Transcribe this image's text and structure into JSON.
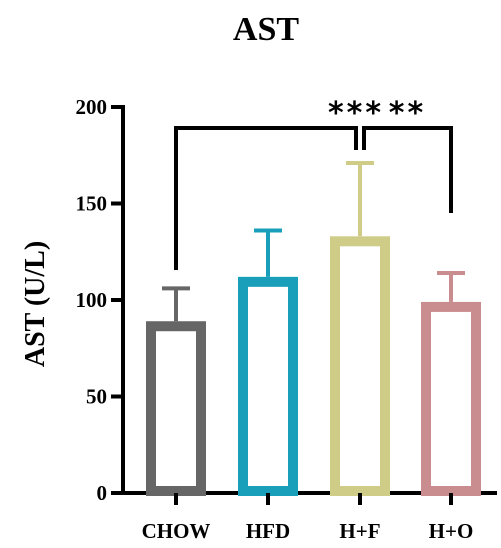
{
  "chart_data": {
    "type": "bar",
    "title": "AST",
    "xlabel": "",
    "ylabel": "AST (U/L)",
    "ylim": [
      0,
      200
    ],
    "yticks": [
      "0",
      "50",
      "100",
      "150",
      "200"
    ],
    "categories": [
      "CHOW",
      "HFD",
      "H+F",
      "H+O"
    ],
    "values": [
      89,
      112,
      133,
      99
    ],
    "errors": [
      17,
      24,
      38,
      15
    ],
    "colors": [
      "#666666",
      "#1a9fba",
      "#cfcc88",
      "#c98d8f"
    ],
    "grid": false,
    "legend": "none",
    "significance": [
      {
        "from": "CHOW",
        "to": "H+F",
        "label": "***"
      },
      {
        "from": "H+F",
        "to": "H+O",
        "label": "**"
      }
    ]
  }
}
